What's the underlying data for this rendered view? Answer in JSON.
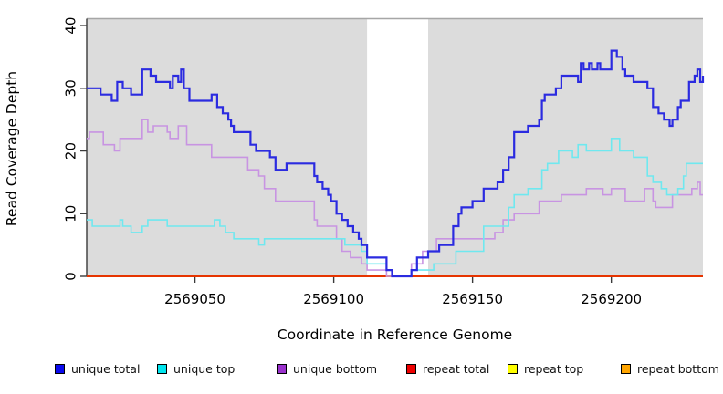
{
  "chart_data": {
    "type": "line",
    "title": "",
    "xlabel": "Coordinate in Reference Genome",
    "ylabel": "Read Coverage Depth",
    "xlim": [
      2569011,
      2569233
    ],
    "ylim": [
      0,
      41.1
    ],
    "xticks": [
      2569050,
      2569100,
      2569150,
      2569200
    ],
    "yticks": [
      0,
      10,
      20,
      30,
      40
    ],
    "grid": false,
    "legend_position": "bottom",
    "plot_bg_color": "#dcdcdc",
    "plot_top_edge_color": "#a6a6a6",
    "axis_color": "#3a3a3a",
    "highlight_band": {
      "x0": 2569112,
      "x1": 2569134,
      "color": "#ffffff"
    },
    "series": [
      {
        "name": "unique total",
        "line_color": "#2b2be0",
        "legend_color": "#0a0aee",
        "line_width": 2.2,
        "step_points": [
          [
            2569011,
            30
          ],
          [
            2569016,
            29
          ],
          [
            2569020,
            28
          ],
          [
            2569022,
            31
          ],
          [
            2569024,
            30
          ],
          [
            2569027,
            29
          ],
          [
            2569031,
            33
          ],
          [
            2569034,
            32
          ],
          [
            2569036,
            31
          ],
          [
            2569041,
            30
          ],
          [
            2569042,
            32
          ],
          [
            2569044,
            31
          ],
          [
            2569045,
            33
          ],
          [
            2569046,
            30
          ],
          [
            2569048,
            28
          ],
          [
            2569056,
            29
          ],
          [
            2569058,
            27
          ],
          [
            2569060,
            26
          ],
          [
            2569062,
            25
          ],
          [
            2569063,
            24
          ],
          [
            2569064,
            23
          ],
          [
            2569070,
            21
          ],
          [
            2569072,
            20
          ],
          [
            2569077,
            19
          ],
          [
            2569079,
            17
          ],
          [
            2569083,
            18
          ],
          [
            2569093,
            16
          ],
          [
            2569094,
            15
          ],
          [
            2569096,
            14
          ],
          [
            2569098,
            13
          ],
          [
            2569099,
            12
          ],
          [
            2569101,
            10
          ],
          [
            2569103,
            9
          ],
          [
            2569105,
            8
          ],
          [
            2569107,
            7
          ],
          [
            2569109,
            6
          ],
          [
            2569110,
            5
          ],
          [
            2569112,
            3
          ],
          [
            2569119,
            1
          ],
          [
            2569121,
            0
          ],
          [
            2569128,
            1
          ],
          [
            2569130,
            3
          ],
          [
            2569134,
            4
          ],
          [
            2569138,
            5
          ],
          [
            2569143,
            8
          ],
          [
            2569145,
            10
          ],
          [
            2569146,
            11
          ],
          [
            2569150,
            12
          ],
          [
            2569154,
            14
          ],
          [
            2569159,
            15
          ],
          [
            2569161,
            17
          ],
          [
            2569163,
            19
          ],
          [
            2569165,
            23
          ],
          [
            2569170,
            24
          ],
          [
            2569174,
            25
          ],
          [
            2569175,
            28
          ],
          [
            2569176,
            29
          ],
          [
            2569180,
            30
          ],
          [
            2569182,
            32
          ],
          [
            2569188,
            31
          ],
          [
            2569189,
            34
          ],
          [
            2569190,
            33
          ],
          [
            2569192,
            34
          ],
          [
            2569193,
            33
          ],
          [
            2569195,
            34
          ],
          [
            2569196,
            33
          ],
          [
            2569200,
            36
          ],
          [
            2569202,
            35
          ],
          [
            2569204,
            33
          ],
          [
            2569205,
            32
          ],
          [
            2569208,
            31
          ],
          [
            2569213,
            30
          ],
          [
            2569215,
            27
          ],
          [
            2569217,
            26
          ],
          [
            2569219,
            25
          ],
          [
            2569221,
            24
          ],
          [
            2569222,
            25
          ],
          [
            2569224,
            27
          ],
          [
            2569225,
            28
          ],
          [
            2569228,
            31
          ],
          [
            2569230,
            32
          ],
          [
            2569231,
            33
          ],
          [
            2569232,
            31
          ],
          [
            2569233,
            32
          ]
        ]
      },
      {
        "name": "unique top",
        "line_color": "#6fe8ef",
        "legend_color": "#00e5ee",
        "line_width": 1.6,
        "step_points": [
          [
            2569011,
            9
          ],
          [
            2569013,
            8
          ],
          [
            2569023,
            9
          ],
          [
            2569024,
            8
          ],
          [
            2569027,
            7
          ],
          [
            2569031,
            8
          ],
          [
            2569033,
            9
          ],
          [
            2569040,
            8
          ],
          [
            2569057,
            9
          ],
          [
            2569059,
            8
          ],
          [
            2569061,
            7
          ],
          [
            2569064,
            6
          ],
          [
            2569073,
            5
          ],
          [
            2569075,
            6
          ],
          [
            2569104,
            5
          ],
          [
            2569110,
            4
          ],
          [
            2569112,
            2
          ],
          [
            2569119,
            1
          ],
          [
            2569121,
            0
          ],
          [
            2569128,
            1
          ],
          [
            2569136,
            2
          ],
          [
            2569144,
            4
          ],
          [
            2569154,
            8
          ],
          [
            2569163,
            11
          ],
          [
            2569165,
            13
          ],
          [
            2569170,
            14
          ],
          [
            2569175,
            17
          ],
          [
            2569177,
            18
          ],
          [
            2569181,
            20
          ],
          [
            2569186,
            19
          ],
          [
            2569188,
            21
          ],
          [
            2569191,
            20
          ],
          [
            2569200,
            22
          ],
          [
            2569203,
            20
          ],
          [
            2569208,
            19
          ],
          [
            2569213,
            16
          ],
          [
            2569215,
            15
          ],
          [
            2569218,
            14
          ],
          [
            2569220,
            13
          ],
          [
            2569224,
            14
          ],
          [
            2569226,
            16
          ],
          [
            2569227,
            18
          ],
          [
            2569233,
            18
          ]
        ]
      },
      {
        "name": "unique bottom",
        "line_color": "#c894e2",
        "legend_color": "#9a32cd",
        "line_width": 1.6,
        "step_points": [
          [
            2569011,
            22
          ],
          [
            2569012,
            23
          ],
          [
            2569017,
            21
          ],
          [
            2569021,
            20
          ],
          [
            2569023,
            22
          ],
          [
            2569031,
            25
          ],
          [
            2569033,
            23
          ],
          [
            2569035,
            24
          ],
          [
            2569040,
            23
          ],
          [
            2569041,
            22
          ],
          [
            2569044,
            24
          ],
          [
            2569047,
            21
          ],
          [
            2569056,
            19
          ],
          [
            2569069,
            17
          ],
          [
            2569073,
            16
          ],
          [
            2569075,
            14
          ],
          [
            2569079,
            12
          ],
          [
            2569093,
            9
          ],
          [
            2569094,
            8
          ],
          [
            2569101,
            6
          ],
          [
            2569103,
            4
          ],
          [
            2569106,
            3
          ],
          [
            2569110,
            2
          ],
          [
            2569112,
            1
          ],
          [
            2569119,
            0
          ],
          [
            2569128,
            2
          ],
          [
            2569132,
            4
          ],
          [
            2569137,
            6
          ],
          [
            2569158,
            7
          ],
          [
            2569161,
            9
          ],
          [
            2569165,
            10
          ],
          [
            2569174,
            12
          ],
          [
            2569182,
            13
          ],
          [
            2569191,
            14
          ],
          [
            2569197,
            13
          ],
          [
            2569200,
            14
          ],
          [
            2569205,
            12
          ],
          [
            2569212,
            14
          ],
          [
            2569215,
            12
          ],
          [
            2569216,
            11
          ],
          [
            2569222,
            13
          ],
          [
            2569229,
            14
          ],
          [
            2569231,
            15
          ],
          [
            2569232,
            13
          ]
        ]
      },
      {
        "name": "repeat total",
        "line_color": "#dd0000",
        "legend_color": "#ee0000",
        "line_width": 1.6,
        "step_points": [
          [
            2569011,
            0
          ],
          [
            2569233,
            0
          ]
        ]
      },
      {
        "name": "repeat top",
        "line_color": "#ffff00",
        "legend_color": "#ffff00",
        "line_width": 1.6,
        "step_points": [
          [
            2569011,
            0
          ],
          [
            2569233,
            0
          ]
        ]
      },
      {
        "name": "repeat bottom",
        "line_color": "#ffa500",
        "legend_color": "#ffa500",
        "line_width": 2,
        "step_points": [
          [
            2569011,
            0
          ],
          [
            2569233,
            0
          ]
        ]
      }
    ]
  }
}
